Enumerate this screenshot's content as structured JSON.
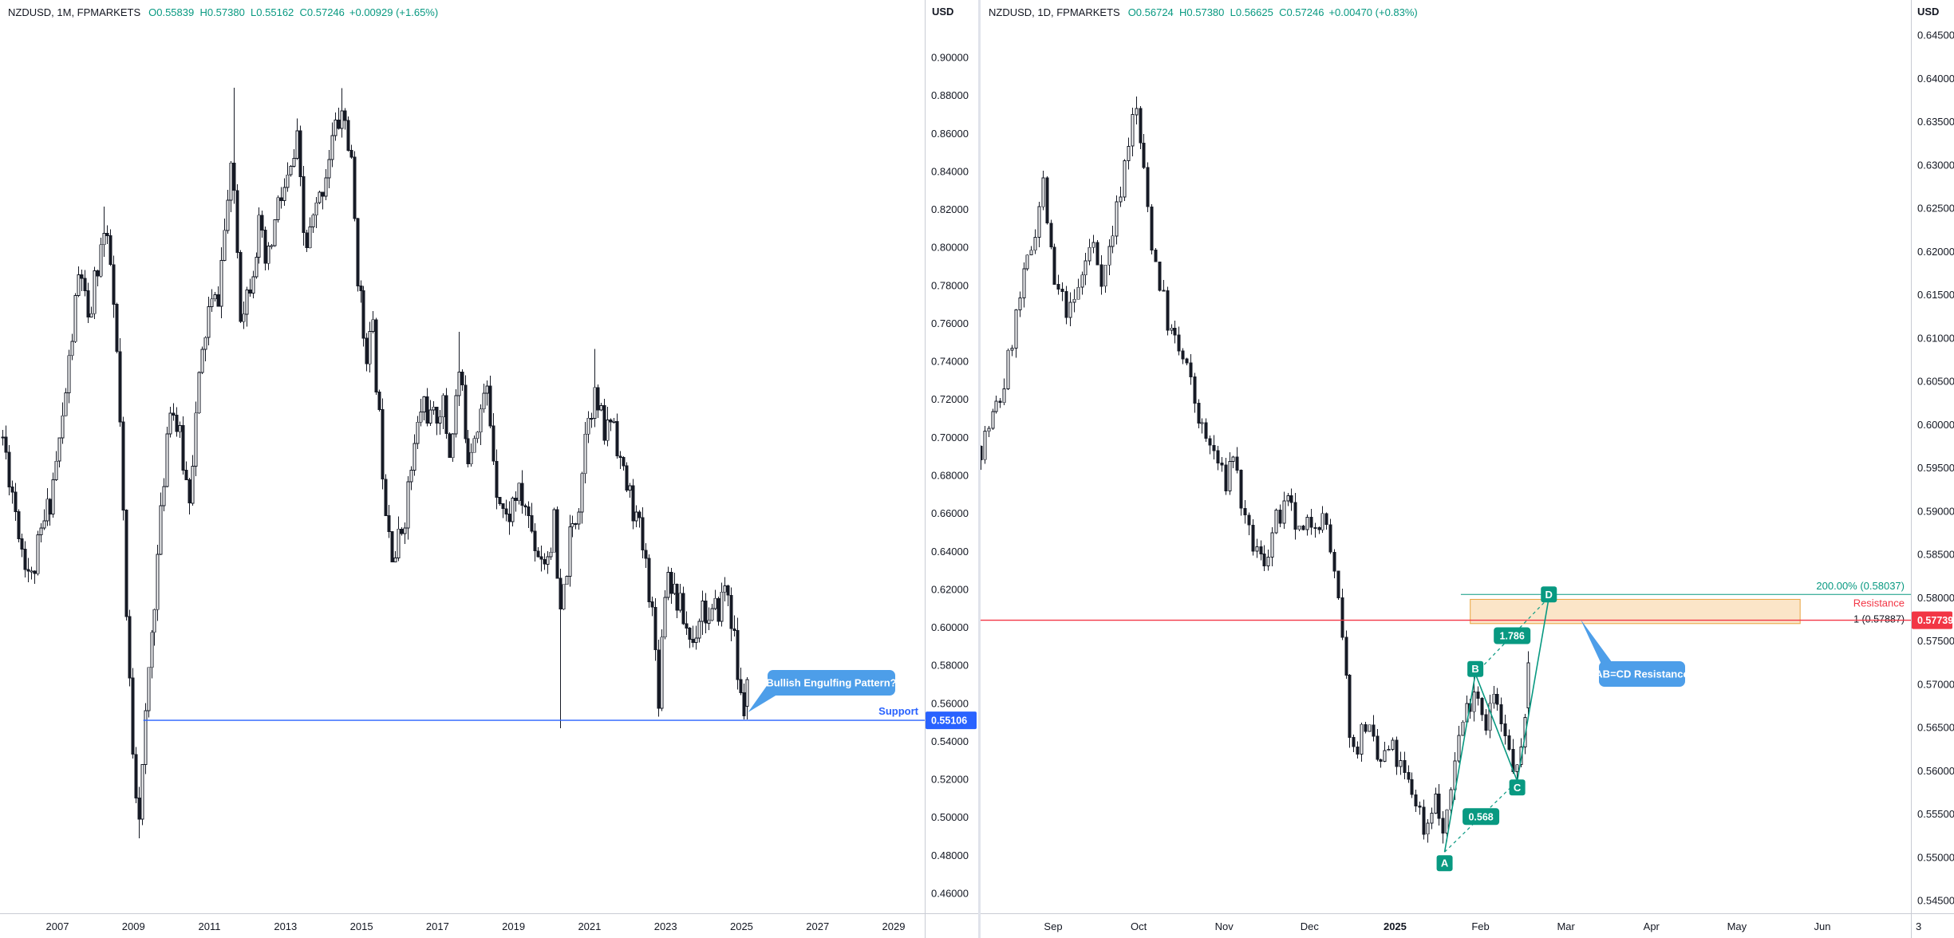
{
  "chart_data": [
    {
      "type": "candlestick",
      "symbol": "NZDUSD",
      "timeframe": "1M",
      "exchange": "FPMARKETS",
      "currency": "USD",
      "legend": {
        "title": "NZDUSD, 1M, FPMARKETS",
        "ohlc": "O0.55839  H0.57380  L0.55162  C0.57246",
        "change": "+0.00929 (+1.65%)"
      },
      "y_axis": {
        "min": 0.46,
        "max": 0.9,
        "step": 0.02,
        "decimals": 5
      },
      "x_axis": {
        "values": [
          2007,
          2009,
          2011,
          2013,
          2015,
          2017,
          2019,
          2021,
          2023,
          2025,
          2027,
          2029
        ],
        "labels": [
          "2007",
          "2009",
          "2011",
          "2013",
          "2015",
          "2017",
          "2019",
          "2021",
          "2023",
          "2025",
          "2027",
          "2029"
        ],
        "bold_labels": []
      },
      "last_candle": {
        "o": 0.55839,
        "h": 0.5738,
        "l": 0.55162,
        "c": 0.57246
      },
      "anchors": [
        [
          2005.55,
          0.7
        ],
        [
          2005.8,
          0.672
        ],
        [
          2006.05,
          0.643
        ],
        [
          2006.3,
          0.625
        ],
        [
          2006.55,
          0.648
        ],
        [
          2006.8,
          0.668
        ],
        [
          2007.1,
          0.703
        ],
        [
          2007.4,
          0.757
        ],
        [
          2007.6,
          0.792
        ],
        [
          2007.8,
          0.756
        ],
        [
          2008.0,
          0.786
        ],
        [
          2008.2,
          0.808
        ],
        [
          2008.4,
          0.788
        ],
        [
          2008.6,
          0.726
        ],
        [
          2008.8,
          0.603
        ],
        [
          2009.0,
          0.525
        ],
        [
          2009.15,
          0.502
        ],
        [
          2009.4,
          0.582
        ],
        [
          2009.7,
          0.652
        ],
        [
          2009.95,
          0.722
        ],
        [
          2010.2,
          0.7
        ],
        [
          2010.45,
          0.668
        ],
        [
          2010.7,
          0.726
        ],
        [
          2010.95,
          0.766
        ],
        [
          2011.2,
          0.772
        ],
        [
          2011.45,
          0.822
        ],
        [
          2011.6,
          0.843
        ],
        [
          2011.8,
          0.768
        ],
        [
          2012.0,
          0.778
        ],
        [
          2012.3,
          0.81
        ],
        [
          2012.5,
          0.787
        ],
        [
          2012.8,
          0.822
        ],
        [
          2013.1,
          0.836
        ],
        [
          2013.3,
          0.854
        ],
        [
          2013.5,
          0.797
        ],
        [
          2013.7,
          0.812
        ],
        [
          2013.9,
          0.826
        ],
        [
          2014.2,
          0.856
        ],
        [
          2014.5,
          0.873
        ],
        [
          2014.7,
          0.846
        ],
        [
          2014.9,
          0.782
        ],
        [
          2015.1,
          0.746
        ],
        [
          2015.3,
          0.754
        ],
        [
          2015.6,
          0.672
        ],
        [
          2015.85,
          0.636
        ],
        [
          2016.1,
          0.656
        ],
        [
          2016.35,
          0.69
        ],
        [
          2016.6,
          0.721
        ],
        [
          2016.85,
          0.706
        ],
        [
          2017.1,
          0.72
        ],
        [
          2017.3,
          0.692
        ],
        [
          2017.55,
          0.734
        ],
        [
          2017.8,
          0.692
        ],
        [
          2018.05,
          0.71
        ],
        [
          2018.3,
          0.724
        ],
        [
          2018.55,
          0.676
        ],
        [
          2018.8,
          0.656
        ],
        [
          2019.05,
          0.67
        ],
        [
          2019.3,
          0.664
        ],
        [
          2019.6,
          0.641
        ],
        [
          2019.85,
          0.636
        ],
        [
          2020.05,
          0.654
        ],
        [
          2020.2,
          0.601
        ],
        [
          2020.45,
          0.644
        ],
        [
          2020.7,
          0.664
        ],
        [
          2020.95,
          0.716
        ],
        [
          2021.15,
          0.721
        ],
        [
          2021.4,
          0.7
        ],
        [
          2021.6,
          0.714
        ],
        [
          2021.85,
          0.681
        ],
        [
          2022.1,
          0.666
        ],
        [
          2022.35,
          0.646
        ],
        [
          2022.6,
          0.616
        ],
        [
          2022.8,
          0.566
        ],
        [
          2023.0,
          0.633
        ],
        [
          2023.2,
          0.621
        ],
        [
          2023.45,
          0.606
        ],
        [
          2023.7,
          0.591
        ],
        [
          2023.95,
          0.614
        ],
        [
          2024.15,
          0.601
        ],
        [
          2024.4,
          0.611
        ],
        [
          2024.6,
          0.624
        ],
        [
          2024.8,
          0.592
        ],
        [
          2024.95,
          0.562
        ],
        [
          2025.08,
          0.556
        ],
        [
          2025.17,
          0.572
        ]
      ],
      "extremes": [
        {
          "t": 2008.2,
          "high": 0.8215
        },
        {
          "t": 2009.15,
          "low": 0.489
        },
        {
          "t": 2011.6,
          "high": 0.884
        },
        {
          "t": 2014.5,
          "high": 0.8838
        },
        {
          "t": 2017.55,
          "high": 0.7555
        },
        {
          "t": 2020.2,
          "low": 0.547
        },
        {
          "t": 2021.15,
          "high": 0.7465
        },
        {
          "t": 2022.8,
          "low": 0.553
        },
        {
          "t": 2025.08,
          "low": 0.5516
        }
      ],
      "overlays": {
        "support_line": {
          "from_t": 2009.26,
          "price": 0.55106,
          "label": "Support",
          "axis_label": "0.55106",
          "color": "#2962ff"
        },
        "callout": {
          "text": "Bullish Engulfing Pattern?",
          "color": "#4d9ee9"
        }
      }
    },
    {
      "type": "candlestick",
      "symbol": "NZDUSD",
      "timeframe": "1D",
      "exchange": "FPMARKETS",
      "currency": "USD",
      "legend": {
        "title": "NZDUSD, 1D, FPMARKETS",
        "ohlc": "O0.56724  H0.57380  L0.56625  C0.57246",
        "change": "+0.00470 (+0.83%)"
      },
      "y_axis": {
        "min": 0.545,
        "max": 0.645,
        "step": 0.005,
        "decimals": 5
      },
      "x_axis": {
        "values": [
          0,
          1,
          2,
          3,
          4,
          5,
          6,
          7,
          8,
          9
        ],
        "labels": [
          "Sep",
          "Oct",
          "Nov",
          "Dec",
          "2025",
          "Feb",
          "Mar",
          "Apr",
          "May",
          "Jun"
        ],
        "bold_labels": [
          "2025"
        ]
      },
      "corner_label": "3",
      "last_candle": {
        "o": 0.56724,
        "h": 0.5738,
        "l": 0.56625,
        "c": 0.57246
      },
      "anchors": [
        [
          -0.85,
          0.5975
        ],
        [
          -0.6,
          0.6035
        ],
        [
          -0.45,
          0.612
        ],
        [
          -0.25,
          0.621
        ],
        [
          -0.12,
          0.628
        ],
        [
          0.0,
          0.616
        ],
        [
          0.2,
          0.6128
        ],
        [
          0.45,
          0.6212
        ],
        [
          0.58,
          0.6168
        ],
        [
          0.75,
          0.6252
        ],
        [
          0.9,
          0.6345
        ],
        [
          0.97,
          0.6362
        ],
        [
          1.15,
          0.6212
        ],
        [
          1.35,
          0.611
        ],
        [
          1.55,
          0.6066
        ],
        [
          1.75,
          0.5988
        ],
        [
          1.9,
          0.5964
        ],
        [
          2.0,
          0.5928
        ],
        [
          2.1,
          0.5972
        ],
        [
          2.25,
          0.5876
        ],
        [
          2.45,
          0.5838
        ],
        [
          2.6,
          0.5886
        ],
        [
          2.75,
          0.5906
        ],
        [
          2.9,
          0.5866
        ],
        [
          3.05,
          0.5896
        ],
        [
          3.2,
          0.5884
        ],
        [
          3.35,
          0.5776
        ],
        [
          3.5,
          0.5618
        ],
        [
          3.65,
          0.5656
        ],
        [
          3.8,
          0.5606
        ],
        [
          3.95,
          0.5626
        ],
        [
          4.1,
          0.5592
        ],
        [
          4.25,
          0.5566
        ],
        [
          4.35,
          0.5528
        ],
        [
          4.45,
          0.5576
        ],
        [
          4.58,
          0.5518
        ],
        [
          4.7,
          0.5624
        ],
        [
          4.8,
          0.5662
        ],
        [
          4.94,
          0.5702
        ],
        [
          5.05,
          0.5656
        ],
        [
          5.15,
          0.5686
        ],
        [
          5.3,
          0.5628
        ],
        [
          5.43,
          0.5592
        ],
        [
          5.5,
          0.5656
        ],
        [
          5.56,
          0.5725
        ]
      ],
      "extremes": [
        {
          "t": 0.97,
          "high": 0.6379
        },
        {
          "t": 4.58,
          "low": 0.5516
        },
        {
          "t": 4.94,
          "high": 0.5721
        },
        {
          "t": 5.43,
          "low": 0.5581
        }
      ],
      "overlays": {
        "fib_line": {
          "from_t": 4.77,
          "price": 0.58037,
          "label": "200.00% (0.58037)",
          "color": "#089981"
        },
        "zone": {
          "from_t": 4.88,
          "to_t": 8.74,
          "top": 0.5798,
          "bottom": 0.577,
          "label": "Resistance",
          "sub_label": "1 (0.57887)",
          "fill": "#f7c684",
          "border": "#e8a33d"
        },
        "h_line": {
          "price": 0.57739,
          "axis_label": "0.57739",
          "color": "#f23645"
        },
        "pattern": {
          "color": "#089981",
          "points": {
            "A": [
              4.58,
              0.5506
            ],
            "B": [
              4.94,
              0.5712
            ],
            "C": [
              5.43,
              0.5588
            ],
            "D": [
              5.8,
              0.58
            ]
          },
          "ac_ratio": "0.568",
          "bd_ratio": "1.786"
        },
        "callout": {
          "text": "AB=CD Resistance",
          "color": "#4d9ee9"
        }
      }
    }
  ]
}
